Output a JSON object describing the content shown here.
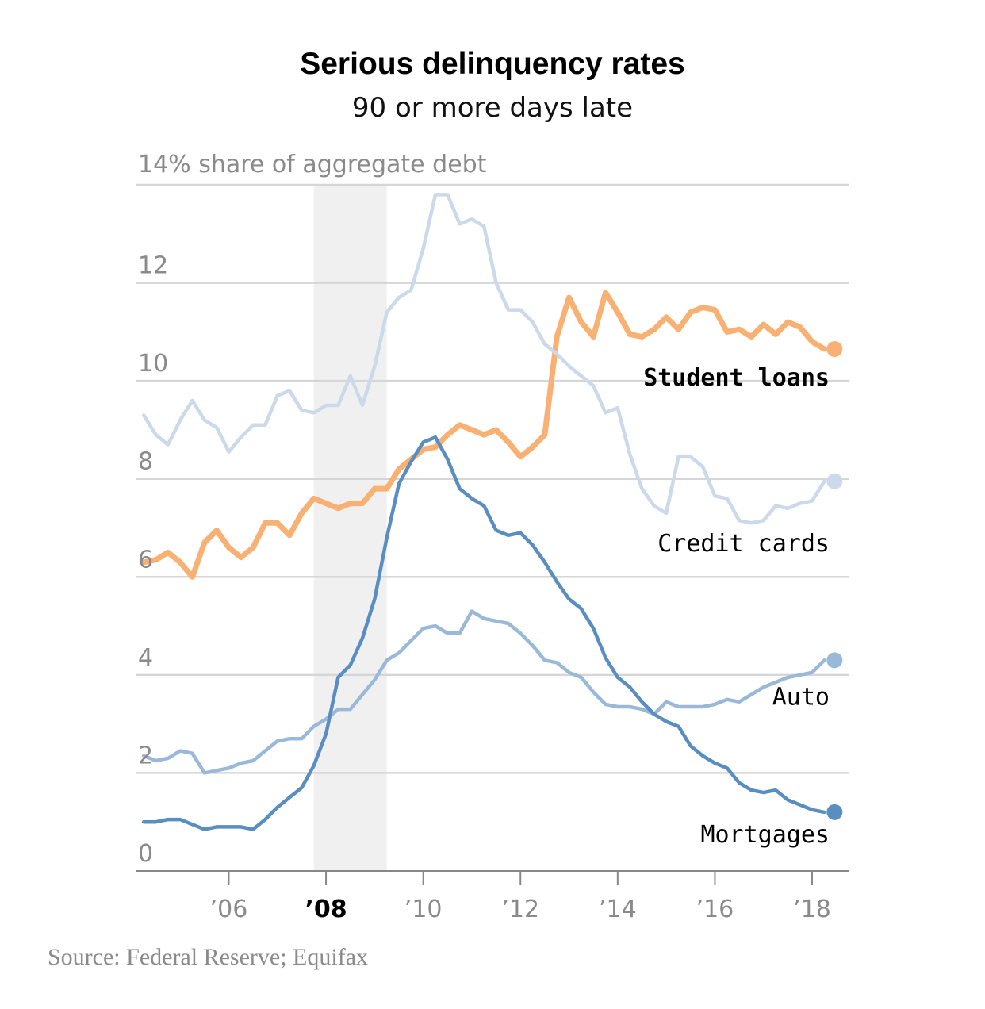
{
  "chart_data": {
    "type": "line",
    "title": "Serious delinquency rates",
    "subtitle": "90 or more days late",
    "ylabel": "14% share of aggregate debt",
    "ylim": [
      0,
      14
    ],
    "yticks": [
      0,
      2,
      4,
      6,
      8,
      10,
      12
    ],
    "ytick_labels": [
      "0",
      "2",
      "4",
      "6",
      "8",
      "10",
      "12"
    ],
    "xlim": [
      2004.1,
      2018.75
    ],
    "xticks": [
      2006,
      2008,
      2010,
      2012,
      2014,
      2016,
      2018
    ],
    "xtick_labels": [
      "’06",
      "’08",
      "’10",
      "’12",
      "’14",
      "’16",
      "’18"
    ],
    "bold_xtick": "’08",
    "recession": [
      2007.75,
      2009.25
    ],
    "grid": true,
    "source": "Source: Federal Reserve; Equifax",
    "colors": {
      "student_loans": "#f8b173",
      "credit_cards": "#ccd9ea",
      "auto": "#9ab8d8",
      "mortgages": "#5a8ec0",
      "recession": "#f0f0f0",
      "grid": "#d6d6d6",
      "axis": "#888888"
    },
    "series": [
      {
        "name": "Student loans",
        "key": "student_loans",
        "label_bold": true,
        "endpoint": true,
        "x": [
          2004.25,
          2004.5,
          2004.75,
          2005,
          2005.25,
          2005.5,
          2005.75,
          2006,
          2006.25,
          2006.5,
          2006.75,
          2007,
          2007.25,
          2007.5,
          2007.75,
          2008,
          2008.25,
          2008.5,
          2008.75,
          2009,
          2009.25,
          2009.5,
          2009.75,
          2010,
          2010.25,
          2010.5,
          2010.75,
          2011,
          2011.25,
          2011.5,
          2011.75,
          2012,
          2012.25,
          2012.5,
          2012.75,
          2013,
          2013.25,
          2013.5,
          2013.75,
          2014,
          2014.25,
          2014.5,
          2014.75,
          2015,
          2015.25,
          2015.5,
          2015.75,
          2016,
          2016.25,
          2016.5,
          2016.75,
          2017,
          2017.25,
          2017.5,
          2017.75,
          2018,
          2018.25
        ],
        "y": [
          6.3,
          6.35,
          6.5,
          6.3,
          6.0,
          6.7,
          6.95,
          6.6,
          6.4,
          6.6,
          7.1,
          7.1,
          6.85,
          7.3,
          7.6,
          7.5,
          7.4,
          7.5,
          7.5,
          7.8,
          7.8,
          8.2,
          8.4,
          8.6,
          8.65,
          8.9,
          9.1,
          9.0,
          8.9,
          9.0,
          8.75,
          8.45,
          8.65,
          8.9,
          10.9,
          11.7,
          11.2,
          10.9,
          11.8,
          11.4,
          10.95,
          10.9,
          11.05,
          11.3,
          11.05,
          11.4,
          11.5,
          11.45,
          11.0,
          11.05,
          10.9,
          11.15,
          10.95,
          11.2,
          11.1,
          10.8,
          10.65
        ]
      },
      {
        "name": "Credit cards",
        "key": "credit_cards",
        "label_bold": false,
        "endpoint": true,
        "x": [
          2004.25,
          2004.5,
          2004.75,
          2005,
          2005.25,
          2005.5,
          2005.75,
          2006,
          2006.25,
          2006.5,
          2006.75,
          2007,
          2007.25,
          2007.5,
          2007.75,
          2008,
          2008.25,
          2008.5,
          2008.75,
          2009,
          2009.25,
          2009.5,
          2009.75,
          2010,
          2010.25,
          2010.5,
          2010.75,
          2011,
          2011.25,
          2011.5,
          2011.75,
          2012,
          2012.25,
          2012.5,
          2012.75,
          2013,
          2013.25,
          2013.5,
          2013.75,
          2014,
          2014.25,
          2014.5,
          2014.75,
          2015,
          2015.25,
          2015.5,
          2015.75,
          2016,
          2016.25,
          2016.5,
          2016.75,
          2017,
          2017.25,
          2017.5,
          2017.75,
          2018,
          2018.25
        ],
        "y": [
          9.3,
          8.9,
          8.7,
          9.2,
          9.6,
          9.2,
          9.05,
          8.55,
          8.85,
          9.1,
          9.1,
          9.7,
          9.8,
          9.4,
          9.35,
          9.5,
          9.5,
          10.1,
          9.5,
          10.3,
          11.4,
          11.7,
          11.85,
          12.7,
          13.8,
          13.8,
          13.2,
          13.3,
          13.15,
          12.0,
          11.45,
          11.45,
          11.2,
          10.75,
          10.55,
          10.3,
          10.1,
          9.9,
          9.35,
          9.45,
          8.5,
          7.8,
          7.45,
          7.3,
          8.45,
          8.45,
          8.25,
          7.65,
          7.6,
          7.15,
          7.1,
          7.15,
          7.45,
          7.4,
          7.5,
          7.55,
          7.95
        ]
      },
      {
        "name": "Auto",
        "key": "auto",
        "label_bold": false,
        "endpoint": true,
        "x": [
          2004.25,
          2004.5,
          2004.75,
          2005,
          2005.25,
          2005.5,
          2005.75,
          2006,
          2006.25,
          2006.5,
          2006.75,
          2007,
          2007.25,
          2007.5,
          2007.75,
          2008,
          2008.25,
          2008.5,
          2008.75,
          2009,
          2009.25,
          2009.5,
          2009.75,
          2010,
          2010.25,
          2010.5,
          2010.75,
          2011,
          2011.25,
          2011.5,
          2011.75,
          2012,
          2012.25,
          2012.5,
          2012.75,
          2013,
          2013.25,
          2013.5,
          2013.75,
          2014,
          2014.25,
          2014.5,
          2014.75,
          2015,
          2015.25,
          2015.5,
          2015.75,
          2016,
          2016.25,
          2016.5,
          2016.75,
          2017,
          2017.25,
          2017.5,
          2017.75,
          2018,
          2018.25
        ],
        "y": [
          2.35,
          2.25,
          2.3,
          2.45,
          2.4,
          2.0,
          2.05,
          2.1,
          2.2,
          2.25,
          2.45,
          2.65,
          2.7,
          2.7,
          2.95,
          3.1,
          3.3,
          3.3,
          3.6,
          3.9,
          4.3,
          4.45,
          4.7,
          4.95,
          5.0,
          4.85,
          4.85,
          5.3,
          5.15,
          5.1,
          5.05,
          4.85,
          4.6,
          4.3,
          4.25,
          4.05,
          3.95,
          3.65,
          3.4,
          3.35,
          3.35,
          3.3,
          3.2,
          3.45,
          3.35,
          3.35,
          3.35,
          3.4,
          3.5,
          3.45,
          3.6,
          3.75,
          3.85,
          3.95,
          4.0,
          4.05,
          4.3
        ]
      },
      {
        "name": "Mortgages",
        "key": "mortgages",
        "label_bold": false,
        "endpoint": true,
        "x": [
          2004.25,
          2004.5,
          2004.75,
          2005,
          2005.25,
          2005.5,
          2005.75,
          2006,
          2006.25,
          2006.5,
          2006.75,
          2007,
          2007.25,
          2007.5,
          2007.75,
          2008,
          2008.25,
          2008.5,
          2008.75,
          2009,
          2009.25,
          2009.5,
          2009.75,
          2010,
          2010.25,
          2010.5,
          2010.75,
          2011,
          2011.25,
          2011.5,
          2011.75,
          2012,
          2012.25,
          2012.5,
          2012.75,
          2013,
          2013.25,
          2013.5,
          2013.75,
          2014,
          2014.25,
          2014.5,
          2014.75,
          2015,
          2015.25,
          2015.5,
          2015.75,
          2016,
          2016.25,
          2016.5,
          2016.75,
          2017,
          2017.25,
          2017.5,
          2017.75,
          2018,
          2018.25
        ],
        "y": [
          1.0,
          1.0,
          1.05,
          1.05,
          0.95,
          0.85,
          0.9,
          0.9,
          0.9,
          0.85,
          1.05,
          1.3,
          1.5,
          1.7,
          2.15,
          2.8,
          3.95,
          4.2,
          4.75,
          5.55,
          6.8,
          7.9,
          8.35,
          8.75,
          8.85,
          8.4,
          7.8,
          7.6,
          7.45,
          6.95,
          6.85,
          6.9,
          6.65,
          6.3,
          5.9,
          5.55,
          5.35,
          4.95,
          4.35,
          3.95,
          3.75,
          3.45,
          3.2,
          3.05,
          2.95,
          2.55,
          2.35,
          2.2,
          2.1,
          1.8,
          1.65,
          1.6,
          1.65,
          1.45,
          1.35,
          1.25,
          1.2
        ]
      }
    ]
  }
}
